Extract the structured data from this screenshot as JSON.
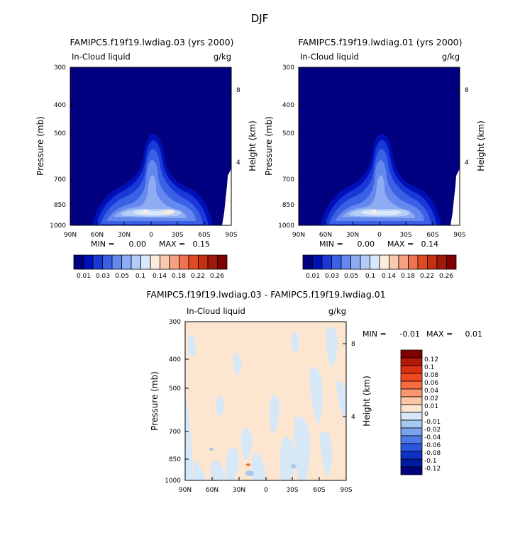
{
  "figure": {
    "season_title": "DJF",
    "units": "g/kg",
    "field": "In-Cloud liquid"
  },
  "chart_data": [
    {
      "type": "heatmap",
      "id": "top-left",
      "title": "FAMIPC5.f19f19.lwdiag.03 (yrs 2000)",
      "subtitle": "In-Cloud liquid",
      "units": "g/kg",
      "xlabel": "",
      "ylabel": "Pressure (mb)",
      "ylabel_right": "Height (km)",
      "x_ticks": [
        "90N",
        "60N",
        "30N",
        "0",
        "30S",
        "60S",
        "90S"
      ],
      "y_ticks": [
        "300",
        "400",
        "500",
        "700",
        "850",
        "1000"
      ],
      "y_right_ticks": [
        "8",
        "4"
      ],
      "min_label": "MIN =",
      "min": "0.00",
      "max_label": "MAX =",
      "max": "0.15",
      "colorbar_levels": [
        "0.01",
        "0.03",
        "0.05",
        "0.1",
        "0.14",
        "0.18",
        "0.22",
        "0.26"
      ],
      "colorbar_colors": [
        "#000080",
        "#0010b8",
        "#1838d8",
        "#3a60e6",
        "#6488ee",
        "#8eacf2",
        "#b4cdf8",
        "#dae8fc",
        "#fdecdc",
        "#f9cab0",
        "#f5a080",
        "#ef7350",
        "#e04a22",
        "#c43010",
        "#a01808",
        "#800000"
      ]
    },
    {
      "type": "heatmap",
      "id": "top-right",
      "title": "FAMIPC5.f19f19.lwdiag.01 (yrs 2000)",
      "subtitle": "In-Cloud liquid",
      "units": "g/kg",
      "xlabel": "",
      "ylabel": "Pressure (mb)",
      "ylabel_right": "Height (km)",
      "x_ticks": [
        "90N",
        "60N",
        "30N",
        "0",
        "30S",
        "60S",
        "90S"
      ],
      "y_ticks": [
        "300",
        "400",
        "500",
        "700",
        "850",
        "1000"
      ],
      "y_right_ticks": [
        "8",
        "4"
      ],
      "min_label": "MIN =",
      "min": "0.00",
      "max_label": "MAX =",
      "max": "0.14",
      "colorbar_levels": [
        "0.01",
        "0.03",
        "0.05",
        "0.1",
        "0.14",
        "0.18",
        "0.22",
        "0.26"
      ],
      "colorbar_colors": [
        "#000080",
        "#0010b8",
        "#1838d8",
        "#3a60e6",
        "#6488ee",
        "#8eacf2",
        "#b4cdf8",
        "#dae8fc",
        "#fdecdc",
        "#f9cab0",
        "#f5a080",
        "#ef7350",
        "#e04a22",
        "#c43010",
        "#a01808",
        "#800000"
      ]
    },
    {
      "type": "heatmap",
      "id": "difference",
      "title": "FAMIPC5.f19f19.lwdiag.03 - FAMIPC5.f19f19.lwdiag.01",
      "subtitle": "In-Cloud liquid",
      "units": "g/kg",
      "xlabel": "",
      "ylabel": "Pressure (mb)",
      "ylabel_right": "Height (km)",
      "x_ticks": [
        "90N",
        "60N",
        "30N",
        "0",
        "30S",
        "60S",
        "90S"
      ],
      "y_ticks": [
        "300",
        "400",
        "500",
        "700",
        "850",
        "1000"
      ],
      "y_right_ticks": [
        "8",
        "4"
      ],
      "min_label": "MIN =",
      "min": "-0.01",
      "max_label": "MAX =",
      "max": "0.01",
      "colorbar_levels": [
        "0.12",
        "0.1",
        "0.08",
        "0.06",
        "0.04",
        "0.02",
        "0.01",
        "0",
        "-0.01",
        "-0.02",
        "-0.04",
        "-0.06",
        "-0.08",
        "-0.1",
        "-0.12"
      ],
      "colorbar_colors": [
        "#800000",
        "#b01808",
        "#d83010",
        "#f04820",
        "#f86a40",
        "#f99870",
        "#fbc6a6",
        "#fde6d0",
        "#d6e8f8",
        "#a8c8f4",
        "#7aa2ee",
        "#4f7ae6",
        "#2856dc",
        "#1032c4",
        "#001aa0",
        "#000080"
      ]
    }
  ]
}
